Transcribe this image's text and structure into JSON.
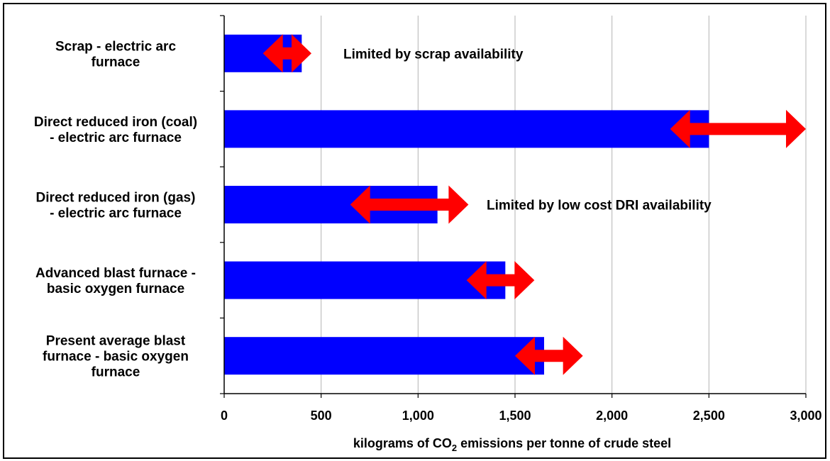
{
  "chart_data": {
    "type": "bar",
    "orientation": "horizontal",
    "categories": [
      [
        "Scrap - electric arc",
        "furnace"
      ],
      [
        "Direct reduced iron (coal)",
        "- electric arc furnace"
      ],
      [
        "Direct reduced iron (gas)",
        "- electric arc furnace"
      ],
      [
        "Advanced blast furnace -",
        "basic oxygen furnace"
      ],
      [
        "Present average blast",
        "furnace - basic oxygen",
        "furnace"
      ]
    ],
    "values": [
      400,
      2500,
      1100,
      1450,
      1650
    ],
    "ranges": [
      [
        200,
        450
      ],
      [
        2300,
        3000
      ],
      [
        650,
        1260
      ],
      [
        1250,
        1600
      ],
      [
        1500,
        1850
      ]
    ],
    "annotations": [
      {
        "category_index": 0,
        "text": "Limited by scrap availability"
      },
      {
        "category_index": 2,
        "text": "Limited by low cost DRI availability"
      }
    ],
    "xlim": [
      0,
      3000
    ],
    "xticks": [
      0,
      500,
      1000,
      1500,
      2000,
      2500,
      3000
    ],
    "xtick_labels": [
      "0",
      "500",
      "1,000",
      "1,500",
      "2,000",
      "2,500",
      "3,000"
    ],
    "xlabel_parts": {
      "before": "kilograms of CO",
      "sub": "2",
      "after": " emissions per tonne of crude steel"
    },
    "grid": "vertical",
    "bar_color": "#0000ff",
    "range_arrow_color": "#ff0000"
  }
}
